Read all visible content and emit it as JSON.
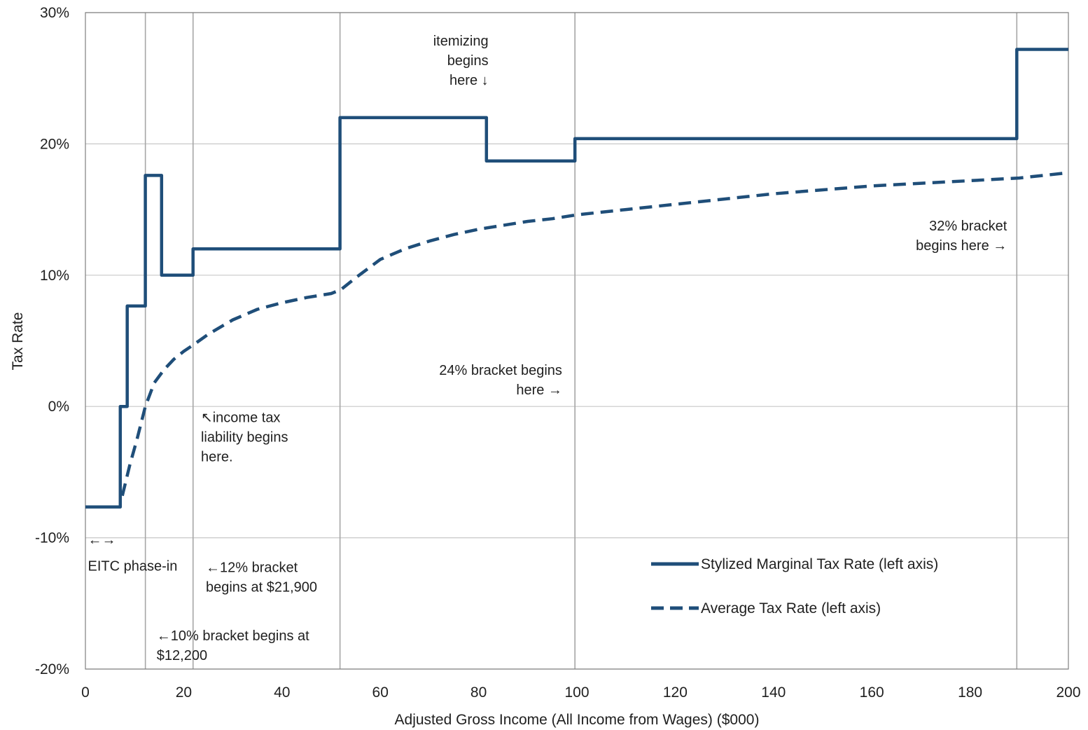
{
  "chart_data": {
    "type": "line",
    "title": "",
    "xlabel": "Adjusted Gross Income (All Income from Wages) ($000)",
    "ylabel": "Tax Rate",
    "xlim": [
      0,
      200
    ],
    "ylim": [
      -20,
      30
    ],
    "x_ticks": [
      "0",
      "20",
      "40",
      "60",
      "80",
      "100",
      "120",
      "140",
      "160",
      "180",
      "200"
    ],
    "y_ticks": [
      "-20%",
      "-10%",
      "0%",
      "10%",
      "20%",
      "30%"
    ],
    "x_tick_values": [
      0,
      20,
      40,
      60,
      80,
      100,
      120,
      140,
      160,
      180,
      200
    ],
    "y_tick_values": [
      -20,
      -10,
      0,
      10,
      20,
      30
    ],
    "grid": true,
    "vertical_markers": [
      12.2,
      21.9,
      51.8,
      99.6,
      189.5
    ],
    "legend_placement": "bottom-right",
    "colors": {
      "series": "#1f4e79",
      "grid": "#c8c8c8",
      "axis": "#808080"
    },
    "series": [
      {
        "name": "Stylized Marginal Tax Rate (left axis)",
        "style": "solid",
        "x": [
          0,
          7.1,
          7.1,
          8.5,
          8.5,
          12.2,
          12.2,
          15.5,
          15.5,
          21.9,
          21.9,
          51.8,
          51.8,
          81.6,
          81.6,
          99.6,
          99.6,
          189.5,
          189.5,
          200
        ],
        "y": [
          -7.65,
          -7.65,
          0,
          0,
          7.65,
          7.65,
          17.6,
          17.6,
          10,
          10,
          12,
          12,
          22,
          22,
          18.7,
          18.7,
          20.4,
          20.4,
          27.2,
          27.2
        ]
      },
      {
        "name": "Average Tax Rate (left axis)",
        "style": "dashed",
        "x": [
          7.5,
          9,
          10.5,
          12.2,
          14,
          16,
          18,
          20,
          22,
          25,
          30,
          35,
          40,
          45,
          50,
          52,
          55,
          60,
          65,
          70,
          75,
          80,
          85,
          90,
          95,
          100,
          110,
          120,
          130,
          140,
          150,
          160,
          170,
          180,
          190,
          200
        ],
        "y": [
          -6.8,
          -4.5,
          -2.5,
          0,
          1.8,
          2.8,
          3.6,
          4.2,
          4.7,
          5.5,
          6.6,
          7.4,
          7.9,
          8.3,
          8.6,
          8.9,
          9.8,
          11.2,
          12.0,
          12.6,
          13.1,
          13.5,
          13.8,
          14.1,
          14.3,
          14.6,
          15.0,
          15.4,
          15.8,
          16.2,
          16.5,
          16.8,
          17.0,
          17.2,
          17.4,
          17.8
        ]
      }
    ],
    "annotations": [
      {
        "lines": [
          "itemizing",
          "begins",
          "here ↓"
        ],
        "x": 82,
        "y": 27.5,
        "anchor": "end"
      },
      {
        "lines": [
          "32% bracket",
          "begins here →"
        ],
        "x": 187.5,
        "y": 13.4,
        "anchor": "end"
      },
      {
        "lines": [
          "24% bracket begins",
          "here →"
        ],
        "x": 97,
        "y": 2.4,
        "anchor": "end"
      },
      {
        "lines": [
          "↖income tax",
          "liability begins",
          "here."
        ],
        "x": 23.5,
        "y": -1.2,
        "anchor": "start"
      },
      {
        "lines": [
          "←→"
        ],
        "x": 0.5,
        "y": -10.5,
        "anchor": "start"
      },
      {
        "lines": [
          "EITC phase-in"
        ],
        "x": 0.5,
        "y": -12.5,
        "anchor": "start"
      },
      {
        "lines": [
          "←12% bracket",
          "begins at $21,900"
        ],
        "x": 24.5,
        "y": -12.6,
        "anchor": "start"
      },
      {
        "lines": [
          "←10% bracket begins at",
          "$12,200"
        ],
        "x": 14.5,
        "y": -17.8,
        "anchor": "start"
      }
    ]
  }
}
